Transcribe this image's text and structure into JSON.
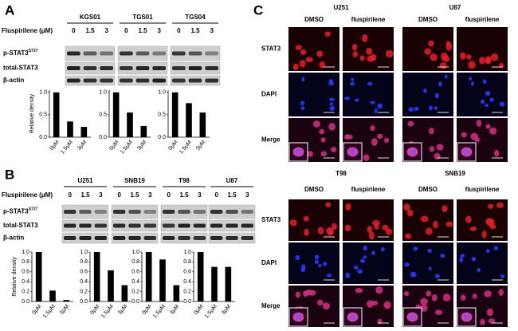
{
  "panel_labels": [
    "A",
    "B",
    "C"
  ],
  "treatment_label": "Fluspirilene (μM)",
  "doses": [
    "0",
    "1.5",
    "3"
  ],
  "blot_rows": [
    "p-STAT3",
    "total-STAT3",
    "β-actin"
  ],
  "phospho_site": "S727",
  "panel_a_lines": [
    "KGS01",
    "TGS01",
    "TGS04"
  ],
  "panel_b_lines": [
    "U251",
    "SNB19",
    "T98",
    "U87"
  ],
  "chart_data": [
    {
      "type": "bar",
      "ylabel": "Relative density",
      "categories": [
        "0μM",
        "1.5μM",
        "3μM"
      ],
      "values": [
        1.0,
        0.35,
        0.23
      ],
      "color": "#000000",
      "ylim": [
        0,
        1.05
      ],
      "yticks": [
        {
          "value": 0,
          "label": "0.0"
        },
        {
          "value": 0.5,
          "label": "0.5"
        },
        {
          "value": 1,
          "label": "1.0"
        }
      ]
    },
    {
      "type": "bar",
      "categories": [
        "0μM",
        "1.5μM",
        "3μM"
      ],
      "values": [
        1.0,
        0.55,
        0.25
      ],
      "color": "#000000",
      "ylim": [
        0,
        1.05
      ],
      "yticks": [
        {
          "value": 0,
          "label": "0.0"
        },
        {
          "value": 0.5,
          "label": "0.5"
        },
        {
          "value": 1,
          "label": "1.0"
        }
      ]
    },
    {
      "type": "bar",
      "categories": [
        "0μM",
        "1.5μM",
        "3μM"
      ],
      "values": [
        1.0,
        0.76,
        0.55
      ],
      "color": "#000000",
      "ylim": [
        0,
        1.05
      ],
      "yticks": [
        {
          "value": 0,
          "label": "0.0"
        },
        {
          "value": 0.5,
          "label": "0.5"
        },
        {
          "value": 1,
          "label": "1.0"
        }
      ]
    },
    {
      "type": "bar",
      "ylabel": "Relative density",
      "categories": [
        "0μM",
        "1.5μM",
        "3μM"
      ],
      "values": [
        1.0,
        0.22,
        0.03
      ],
      "color": "#000000",
      "ylim": [
        0,
        1.0
      ],
      "yticks": [
        {
          "value": 0,
          "label": "0.0"
        },
        0.2,
        0.4,
        0.6,
        0.8,
        {
          "value": 1,
          "label": "1.0"
        }
      ]
    },
    {
      "type": "bar",
      "categories": [
        "0μM",
        "1.5μM",
        "3μM"
      ],
      "values": [
        1.0,
        0.63,
        0.33
      ],
      "color": "#000000",
      "ylim": [
        0,
        1.0
      ],
      "yticks": [
        {
          "value": 0,
          "label": "0.0"
        },
        0.2,
        0.4,
        0.6,
        0.8,
        {
          "value": 1,
          "label": "1.0"
        }
      ]
    },
    {
      "type": "bar",
      "categories": [
        "0μM",
        "1.5μM",
        "3μM"
      ],
      "values": [
        1.0,
        0.85,
        0.33
      ],
      "color": "#000000",
      "ylim": [
        0,
        1.0
      ],
      "yticks": [
        {
          "value": 0,
          "label": "0.0"
        },
        0.2,
        0.4,
        0.6,
        0.8,
        {
          "value": 1,
          "label": "1.0"
        }
      ]
    },
    {
      "type": "bar",
      "categories": [
        "0μM",
        "1.5μM",
        "3μM"
      ],
      "values": [
        1.0,
        0.7,
        0.7
      ],
      "color": "#000000",
      "ylim": [
        0,
        1.0
      ],
      "yticks": [
        {
          "value": 0,
          "label": "0.0"
        },
        0.2,
        0.4,
        0.6,
        0.8,
        {
          "value": 1,
          "label": "1.0"
        }
      ]
    }
  ],
  "panel_c": {
    "groups": [
      "U251",
      "U87",
      "T98",
      "SNB19"
    ],
    "conditions": [
      "DMSO",
      "fluspirilene"
    ],
    "channels": [
      "STAT3",
      "DAPI",
      "Merge"
    ]
  }
}
